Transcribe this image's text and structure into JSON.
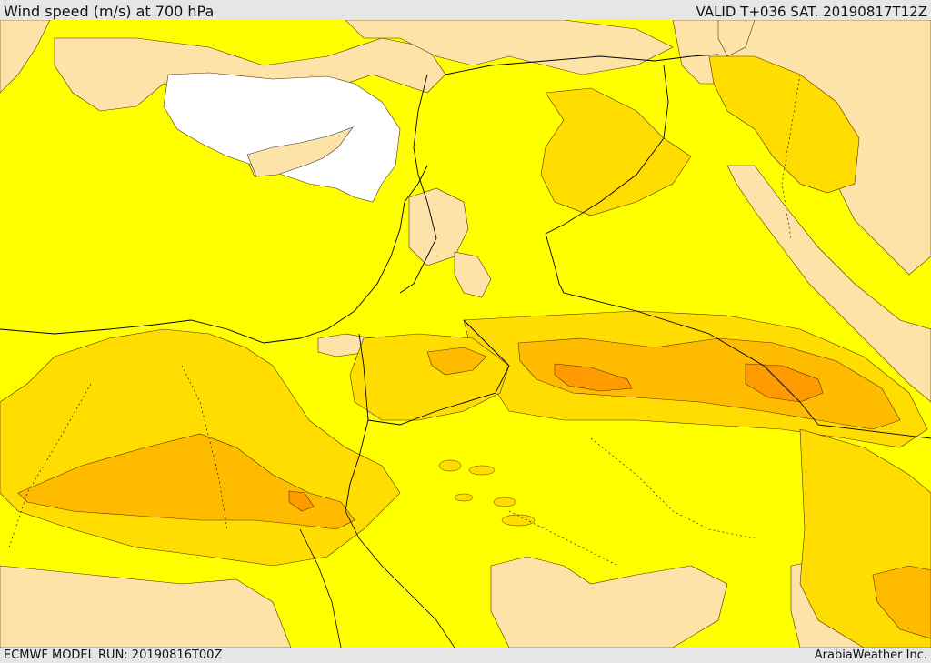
{
  "header": {
    "title": "Wind speed (m/s) at 700 hPa",
    "valid": "VALID T+036 SAT. 20190817T12Z"
  },
  "footer": {
    "model_run": "ECMWF MODEL RUN: 20190816T00Z",
    "credit": "ArabiaWeather Inc."
  },
  "map": {
    "field": "wind speed",
    "unit": "m/s",
    "level": "700 hPa",
    "colors": {
      "band_low": "#fde3a7",
      "band_mid": "#ffff00",
      "band_high": "#ffdd00",
      "band_higher": "#ffbb00",
      "band_highest": "#ff9a00",
      "sea_masked": "#ffffff",
      "contour": "#553300",
      "boundary": "#000000"
    }
  }
}
